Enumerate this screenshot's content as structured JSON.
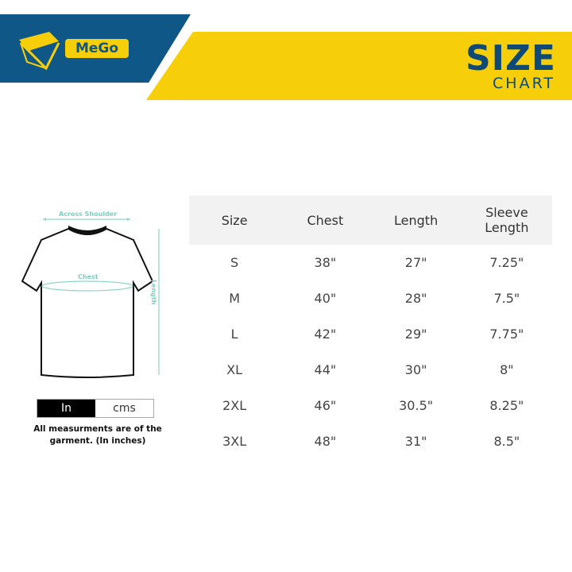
{
  "brand": {
    "name": "MeGo",
    "colors": {
      "blue": "#0f5786",
      "yellow": "#f6cf0a"
    }
  },
  "header": {
    "title": "SIZE",
    "subtitle": "CHART"
  },
  "diagram": {
    "across_shoulder": "Across Shoulder",
    "chest": "Chest",
    "length": "Length"
  },
  "unit_toggle": {
    "options": [
      "In",
      "cms"
    ],
    "selected": "In"
  },
  "note": "All measurments are of the garment. (In inches)",
  "table": {
    "headers": [
      "Size",
      "Chest",
      "Length",
      "Sleeve Length"
    ],
    "rows": [
      [
        "S",
        "38\"",
        "27\"",
        "7.25\""
      ],
      [
        "M",
        "40\"",
        "28\"",
        "7.5\""
      ],
      [
        "L",
        "42\"",
        "29\"",
        "7.75\""
      ],
      [
        "XL",
        "44\"",
        "30\"",
        "8\""
      ],
      [
        "2XL",
        "46\"",
        "30.5\"",
        "8.25\""
      ],
      [
        "3XL",
        "48\"",
        "31\"",
        "8.5\""
      ]
    ]
  }
}
